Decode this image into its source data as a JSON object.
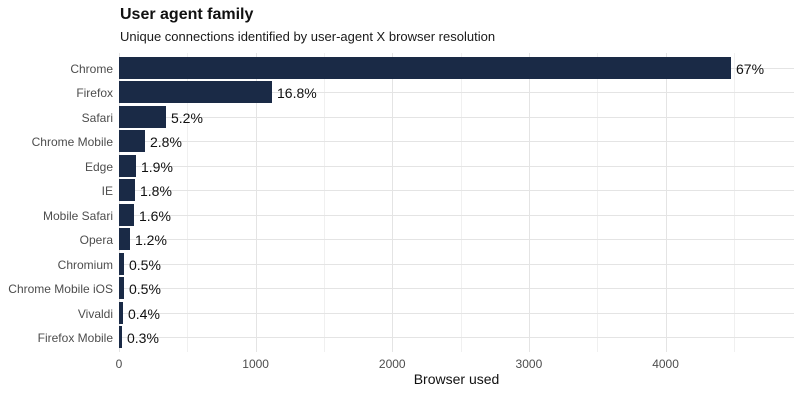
{
  "header": {
    "title": "User agent family",
    "subtitle": "Unique connections identified by user-agent X browser resolution"
  },
  "chart_data": {
    "type": "bar",
    "orientation": "horizontal",
    "title": "User agent family",
    "subtitle": "Unique connections identified by user-agent X browser resolution",
    "categories": [
      "Chrome",
      "Firefox",
      "Safari",
      "Chrome Mobile",
      "Edge",
      "IE",
      "Mobile Safari",
      "Opera",
      "Chromium",
      "Chrome Mobile iOS",
      "Vivaldi",
      "Firefox Mobile"
    ],
    "values": [
      4476,
      1122,
      347,
      187,
      127,
      120,
      107,
      80,
      33,
      33,
      27,
      20
    ],
    "percent_labels": [
      "67%",
      "16.8%",
      "5.2%",
      "2.8%",
      "1.9%",
      "1.8%",
      "1.6%",
      "1.2%",
      "0.5%",
      "0.5%",
      "0.4%",
      "0.3%"
    ],
    "xlabel": "Browser used",
    "ylabel": "",
    "xlim": [
      0,
      4940
    ],
    "xticks": [
      0,
      1000,
      2000,
      3000,
      4000
    ],
    "minor_gridlines": [
      500,
      1500,
      2500,
      3500,
      4500
    ],
    "grid": true,
    "legend": false,
    "bar_color": "#1a2a46",
    "colors": {
      "grid_major": "#e4e4e4",
      "grid_minor": "#f0f0f0",
      "axis_text": "#4d4d4d",
      "text": "#111111",
      "background": "#ffffff"
    }
  }
}
